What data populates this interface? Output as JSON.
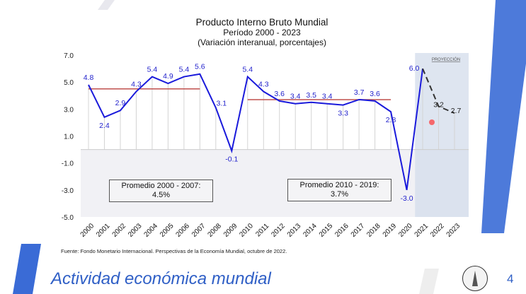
{
  "slide": {
    "footer_title": "Actividad económica mundial",
    "page_number": "4",
    "source": "Fuente: Fondo Monetario Internacional. Perspectivas de la Economía Mundial, octubre de 2022.",
    "logo_text": "BANCO DE GUATEMALA"
  },
  "chart_data": {
    "type": "line",
    "title": "Producto Interno Bruto Mundial",
    "subtitle": "Período 2000 - 2023",
    "subtitle2": "(Variación interanual, porcentajes)",
    "categories": [
      "2000",
      "2001",
      "2002",
      "2003",
      "2004",
      "2005",
      "2006",
      "2007",
      "2008",
      "2009",
      "2010",
      "2011",
      "2012",
      "2013",
      "2014",
      "2015",
      "2016",
      "2017",
      "2018",
      "2019",
      "2020",
      "2021",
      "2022",
      "2023"
    ],
    "values": [
      4.8,
      2.4,
      2.9,
      4.3,
      5.4,
      4.9,
      5.4,
      5.6,
      3.1,
      -0.1,
      5.4,
      4.3,
      3.6,
      3.4,
      3.5,
      3.4,
      3.3,
      3.7,
      3.6,
      2.8,
      -3.0,
      6.0,
      3.2,
      2.7
    ],
    "labels": [
      "4.8",
      "2.4",
      "2.9",
      "4.3",
      "5.4",
      "4.9",
      "5.4",
      "5.6",
      "3.1",
      "-0.1",
      "5.4",
      "4.3",
      "3.6",
      "3.4",
      "3.5",
      "3.4",
      "3.3",
      "3.7",
      "3.6",
      "2.8",
      "-3.0",
      "6.0",
      "3.2",
      "2.7"
    ],
    "projection_start_index": 21,
    "projection_label": "PROYECCIÓN",
    "yticks": [
      "7.0",
      "5.0",
      "3.0",
      "1.0",
      "-1.0",
      "-3.0",
      "-5.0"
    ],
    "ylim": [
      -5,
      7
    ],
    "averages": [
      {
        "label": "Promedio 2000 - 2007:",
        "value_text": "4.5%",
        "value": 4.5,
        "from": 0,
        "to": 7
      },
      {
        "label": "Promedio 2010 - 2019:",
        "value_text": "3.7%",
        "value": 3.7,
        "from": 10,
        "to": 19
      }
    ],
    "colors": {
      "line": "#1a1adb",
      "average": "#c0504d",
      "projection_bg": "#d6deec",
      "label": "#2222cc"
    }
  }
}
